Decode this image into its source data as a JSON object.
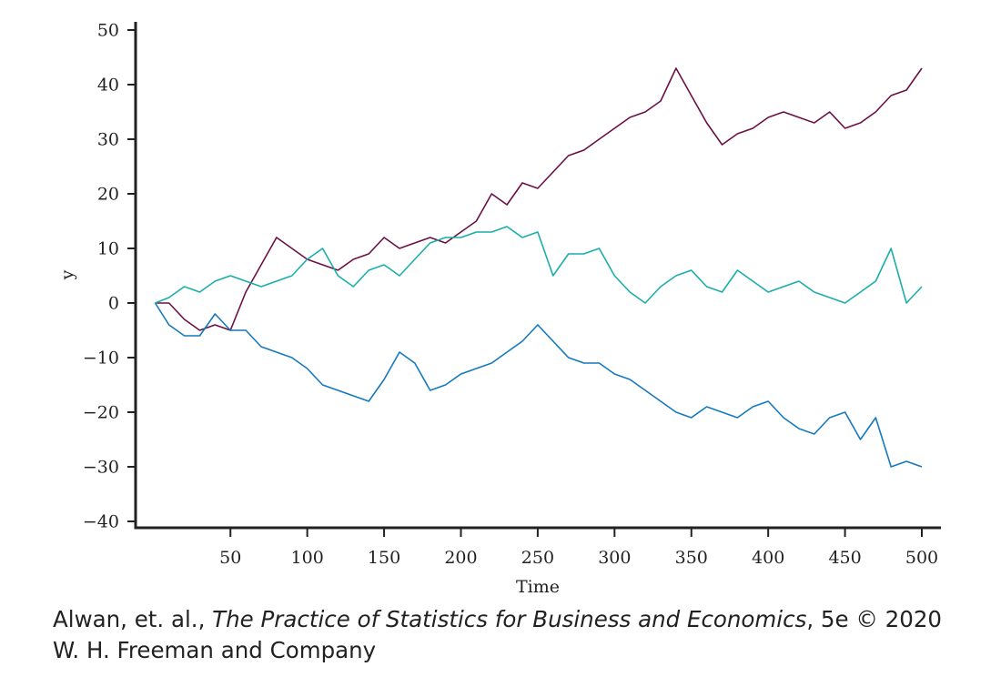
{
  "chart_data": {
    "type": "line",
    "xlabel": "Time",
    "ylabel": "y",
    "xlim": [
      1,
      500
    ],
    "ylim": [
      -40,
      50
    ],
    "x_ticks": [
      50,
      100,
      150,
      200,
      250,
      300,
      350,
      400,
      450,
      500
    ],
    "y_ticks": [
      -40,
      -30,
      -20,
      -10,
      0,
      10,
      20,
      30,
      40,
      50
    ],
    "y_tick_labels": [
      "−40",
      "−30",
      "−20",
      "−10",
      "0",
      "10",
      "20",
      "30",
      "40",
      "50"
    ],
    "grid": false,
    "legend": false,
    "series": [
      {
        "color": "#6b1046",
        "x": [
          1,
          10,
          20,
          30,
          40,
          50,
          60,
          70,
          80,
          90,
          100,
          110,
          120,
          130,
          140,
          150,
          160,
          170,
          180,
          190,
          200,
          210,
          220,
          230,
          240,
          250,
          260,
          270,
          280,
          290,
          300,
          310,
          320,
          330,
          340,
          350,
          360,
          370,
          380,
          390,
          400,
          410,
          420,
          430,
          440,
          450,
          460,
          470,
          480,
          490,
          500
        ],
        "values": [
          0,
          0,
          -3,
          -5,
          -4,
          -5,
          2,
          7,
          12,
          10,
          8,
          7,
          6,
          8,
          9,
          12,
          10,
          11,
          12,
          11,
          13,
          15,
          20,
          18,
          22,
          21,
          24,
          27,
          28,
          30,
          32,
          34,
          35,
          37,
          43,
          38,
          33,
          29,
          31,
          32,
          34,
          35,
          34,
          33,
          35,
          32,
          33,
          35,
          38,
          39,
          43
        ]
      },
      {
        "color": "#1aaeaa",
        "x": [
          1,
          10,
          20,
          30,
          40,
          50,
          60,
          70,
          80,
          90,
          100,
          110,
          120,
          130,
          140,
          150,
          160,
          170,
          180,
          190,
          200,
          210,
          220,
          230,
          240,
          250,
          260,
          270,
          280,
          290,
          300,
          310,
          320,
          330,
          340,
          350,
          360,
          370,
          380,
          390,
          400,
          410,
          420,
          430,
          440,
          450,
          460,
          470,
          480,
          490,
          500
        ],
        "values": [
          0,
          1,
          3,
          2,
          4,
          5,
          4,
          3,
          4,
          5,
          8,
          10,
          5,
          3,
          6,
          7,
          5,
          8,
          11,
          12,
          12,
          13,
          13,
          14,
          12,
          13,
          5,
          9,
          9,
          10,
          5,
          2,
          0,
          3,
          5,
          6,
          3,
          2,
          6,
          4,
          2,
          3,
          4,
          2,
          1,
          0,
          2,
          4,
          10,
          0,
          3
        ]
      },
      {
        "color": "#1479be",
        "x": [
          1,
          10,
          20,
          30,
          40,
          50,
          60,
          70,
          80,
          90,
          100,
          110,
          120,
          130,
          140,
          150,
          160,
          170,
          180,
          190,
          200,
          210,
          220,
          230,
          240,
          250,
          260,
          270,
          280,
          290,
          300,
          310,
          320,
          330,
          340,
          350,
          360,
          370,
          380,
          390,
          400,
          410,
          420,
          430,
          440,
          450,
          460,
          470,
          480,
          490,
          500
        ],
        "values": [
          0,
          -4,
          -6,
          -6,
          -2,
          -5,
          -5,
          -8,
          -9,
          -10,
          -12,
          -15,
          -16,
          -17,
          -18,
          -14,
          -9,
          -11,
          -16,
          -15,
          -13,
          -12,
          -11,
          -9,
          -7,
          -4,
          -7,
          -10,
          -11,
          -11,
          -13,
          -14,
          -16,
          -18,
          -20,
          -21,
          -19,
          -20,
          -21,
          -19,
          -18,
          -21,
          -23,
          -24,
          -21,
          -20,
          -25,
          -21,
          -30,
          -29,
          -30
        ]
      }
    ]
  },
  "credit": {
    "authors": "Alwan, et. al., ",
    "book_title": "The Practice of Statistics for Business and Economics",
    "edition": ", 5e © 2020",
    "publisher": "W. H. Freeman and Company"
  }
}
